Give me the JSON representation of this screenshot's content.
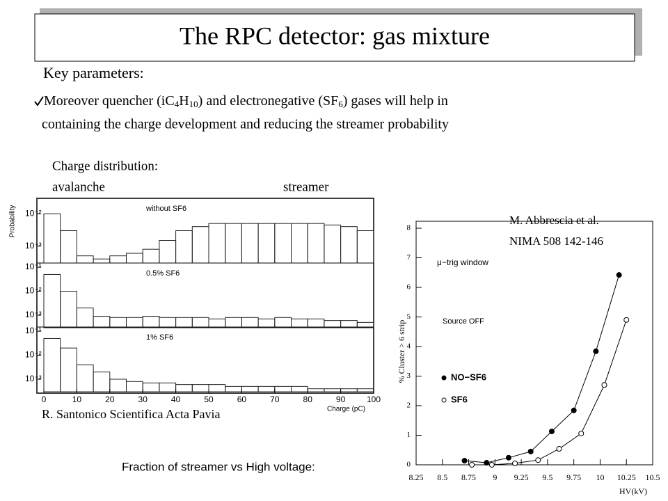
{
  "title": "The RPC detector: gas mixture",
  "key_parameters": {
    "heading": "Key parameters:",
    "bullet_segments": [
      "Moreover quencher (iC",
      "4",
      "H",
      "10",
      ") and electronegative (SF",
      "6",
      ") gases will help in"
    ],
    "bullet_line2": "containing the charge development and reducing the streamer probability"
  },
  "charge_label": "Charge distribution:",
  "avalanche": "avalanche",
  "streamer": "streamer",
  "left_credit": "R. Santonico Scientifica Acta Pavia",
  "right_credit": [
    "M. Abbrescia et al.",
    "NIMA 508 142-146"
  ],
  "caption": "Fraction of streamer vs High voltage:",
  "chart_data": [
    {
      "type": "histogram",
      "xlabel": "Charge (pC)",
      "ylabel": "Probability",
      "log_y": true,
      "bins": [
        0,
        5,
        10,
        15,
        20,
        25,
        30,
        35,
        40,
        45,
        50,
        55,
        60,
        65,
        70,
        75,
        80,
        85,
        90,
        95,
        100
      ],
      "xlim": [
        0,
        100
      ],
      "xticks": [
        0,
        10,
        20,
        30,
        40,
        50,
        60,
        70,
        80,
        90,
        100
      ],
      "panels": [
        {
          "name": "without SF6",
          "ylim": [
            0.0003,
            0.03
          ],
          "yticks": [
            {
              "value": 0.01,
              "label": "10⁻²"
            },
            {
              "value": 0.001,
              "label": "10⁻³"
            }
          ],
          "counts": [
            0.01,
            0.003,
            0.0005,
            0.0004,
            0.0005,
            0.0006,
            0.0008,
            0.0015,
            0.003,
            0.004,
            0.005,
            0.005,
            0.005,
            0.005,
            0.005,
            0.005,
            0.005,
            0.0045,
            0.004,
            0.003
          ]
        },
        {
          "name": "0.5% SF6",
          "ylim": [
            0.0003,
            0.15
          ],
          "yticks": [
            {
              "value": 0.1,
              "label": "10⁻¹"
            },
            {
              "value": 0.01,
              "label": "10⁻²"
            },
            {
              "value": 0.001,
              "label": "10⁻³"
            }
          ],
          "counts": [
            0.05,
            0.01,
            0.002,
            0.0009,
            0.0008,
            0.0008,
            0.0009,
            0.0008,
            0.0008,
            0.0008,
            0.0007,
            0.0008,
            0.0008,
            0.0007,
            0.0008,
            0.0007,
            0.0007,
            0.0006,
            0.0006,
            0.0005
          ]
        },
        {
          "name": "1% SF6",
          "ylim": [
            0.0003,
            0.15
          ],
          "yticks": [
            {
              "value": 0.1,
              "label": "10⁻¹"
            },
            {
              "value": 0.01,
              "label": "10⁻²"
            },
            {
              "value": 0.001,
              "label": "10⁻³"
            }
          ],
          "counts": [
            0.05,
            0.02,
            0.004,
            0.002,
            0.001,
            0.0008,
            0.0007,
            0.0007,
            0.0006,
            0.0006,
            0.0006,
            0.0005,
            0.0005,
            0.0005,
            0.0005,
            0.0005,
            0.0004,
            0.0004,
            0.0004,
            0.0004
          ]
        }
      ]
    },
    {
      "type": "line",
      "xlabel": "HV(kV)",
      "ylabel": "% Cluster > 6 strip",
      "annotations": [
        "μ−trig window",
        "Source OFF"
      ],
      "xlim": [
        8.25,
        10.5
      ],
      "xticks": [
        8.25,
        8.5,
        8.75,
        9,
        9.25,
        9.5,
        9.75,
        10,
        10.25,
        10.5
      ],
      "ylim": [
        0,
        8
      ],
      "yticks": [
        0,
        1,
        2,
        3,
        4,
        5,
        6,
        7,
        8
      ],
      "series": [
        {
          "name": "NO−SF6",
          "color": "#000000",
          "marker": "filled",
          "x": [
            8.71,
            8.92,
            9.13,
            9.34,
            9.54,
            9.75,
            9.96,
            10.18
          ],
          "values": [
            0.14,
            0.07,
            0.24,
            0.45,
            1.13,
            1.84,
            3.84,
            6.42
          ]
        },
        {
          "name": "SF6",
          "color": "#000000",
          "marker": "open",
          "x": [
            8.78,
            8.97,
            9.19,
            9.41,
            9.61,
            9.82,
            10.04,
            10.25
          ],
          "values": [
            0,
            0,
            0.05,
            0.16,
            0.54,
            1.06,
            2.7,
            4.9
          ]
        }
      ]
    }
  ]
}
